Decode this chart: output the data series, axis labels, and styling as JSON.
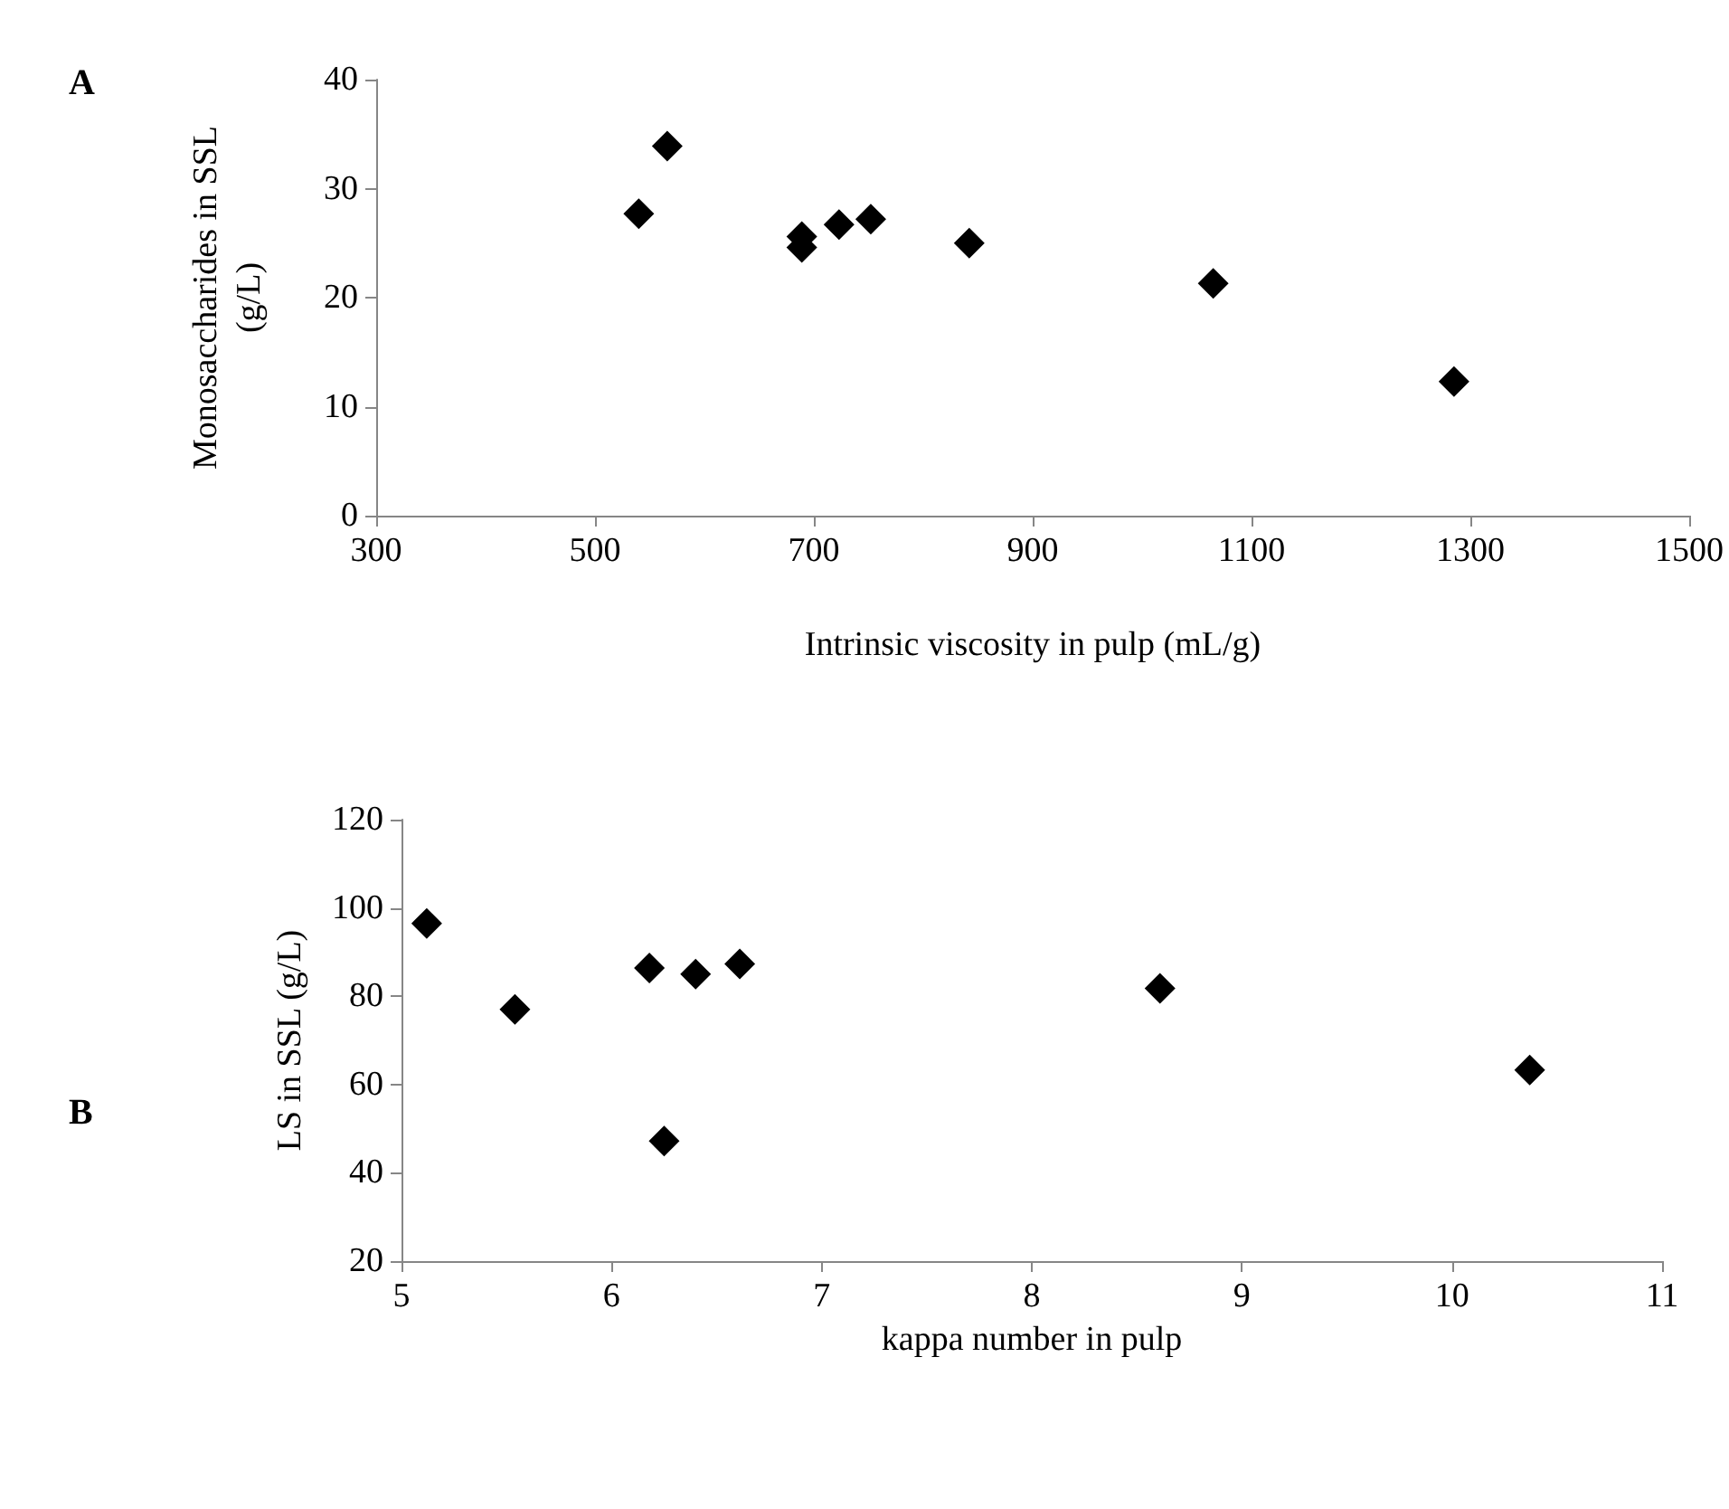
{
  "chart_data": [
    {
      "type": "scatter",
      "xlabel": "Intrinsic viscosity in pulp (mL/g)",
      "ylabel": "Monosaccharides in SSL (g/L)",
      "annotations": [
        "A"
      ],
      "x": [
        540,
        566,
        689,
        689,
        723,
        752,
        842,
        1065,
        1285
      ],
      "series": [
        {
          "color": "#000000",
          "values": [
            27.7,
            33.9,
            25.6,
            24.6,
            26.7,
            27.2,
            25.0,
            21.3,
            12.3
          ]
        }
      ],
      "xlim": [
        300,
        1500
      ],
      "xticks": [
        300,
        500,
        700,
        900,
        1100,
        1300,
        1500
      ],
      "ylim": [
        0,
        40
      ],
      "yticks": [
        0,
        10,
        20,
        30,
        40
      ],
      "grid": false,
      "marker": "diamond"
    },
    {
      "type": "scatter",
      "xlabel": "kappa number in pulp",
      "ylabel": "LS in SSL (g/L)",
      "annotations": [
        "B"
      ],
      "x": [
        5.12,
        5.54,
        6.18,
        6.25,
        6.4,
        6.61,
        8.61,
        10.37
      ],
      "series": [
        {
          "color": "#000000",
          "values": [
            96.5,
            77.0,
            86.4,
            47.2,
            85.0,
            87.3,
            81.8,
            63.3
          ]
        }
      ],
      "xlim": [
        5,
        11
      ],
      "xticks": [
        5,
        6,
        7,
        8,
        9,
        10,
        11
      ],
      "ylim": [
        20,
        120
      ],
      "yticks": [
        20,
        40,
        60,
        80,
        100,
        120
      ],
      "grid": false,
      "marker": "diamond"
    }
  ]
}
